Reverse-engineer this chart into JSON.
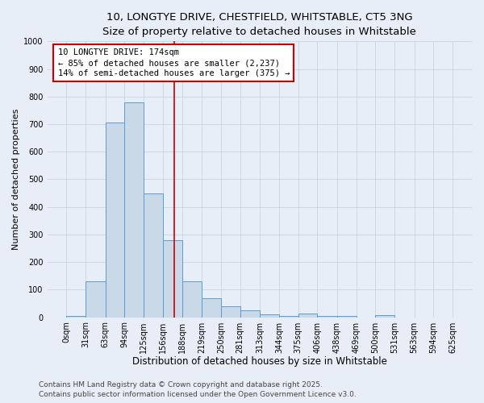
{
  "title_line1": "10, LONGTYE DRIVE, CHESTFIELD, WHITSTABLE, CT5 3NG",
  "title_line2": "Size of property relative to detached houses in Whitstable",
  "xlabel": "Distribution of detached houses by size in Whitstable",
  "ylabel": "Number of detached properties",
  "bar_edges": [
    0,
    31,
    63,
    94,
    125,
    156,
    188,
    219,
    250,
    281,
    313,
    344,
    375,
    406,
    438,
    469,
    500,
    531,
    563,
    594,
    625
  ],
  "bar_heights": [
    5,
    130,
    705,
    780,
    450,
    280,
    130,
    70,
    40,
    25,
    10,
    5,
    12,
    5,
    5,
    0,
    8,
    0,
    0,
    0
  ],
  "bar_color": "#c9d9e8",
  "bar_edge_color": "#5b9bd5",
  "vline_x": 174,
  "vline_color": "#cc0000",
  "annotation_text_line1": "10 LONGTYE DRIVE: 174sqm",
  "annotation_text_line2": "← 85% of detached houses are smaller (2,237)",
  "annotation_text_line3": "14% of semi-detached houses are larger (375) →",
  "annotation_box_color": "#ffffff",
  "annotation_border_color": "#cc0000",
  "ylim": [
    0,
    1000
  ],
  "yticks": [
    0,
    100,
    200,
    300,
    400,
    500,
    600,
    700,
    800,
    900,
    1000
  ],
  "grid_color": "#c8d4e4",
  "background_color": "#e8eef8",
  "footer_line1": "Contains HM Land Registry data © Crown copyright and database right 2025.",
  "footer_line2": "Contains public sector information licensed under the Open Government Licence v3.0.",
  "title_fontsize": 9.5,
  "subtitle_fontsize": 9,
  "xlabel_fontsize": 8.5,
  "ylabel_fontsize": 8,
  "tick_fontsize": 7,
  "annotation_fontsize": 7.5,
  "footer_fontsize": 6.5
}
